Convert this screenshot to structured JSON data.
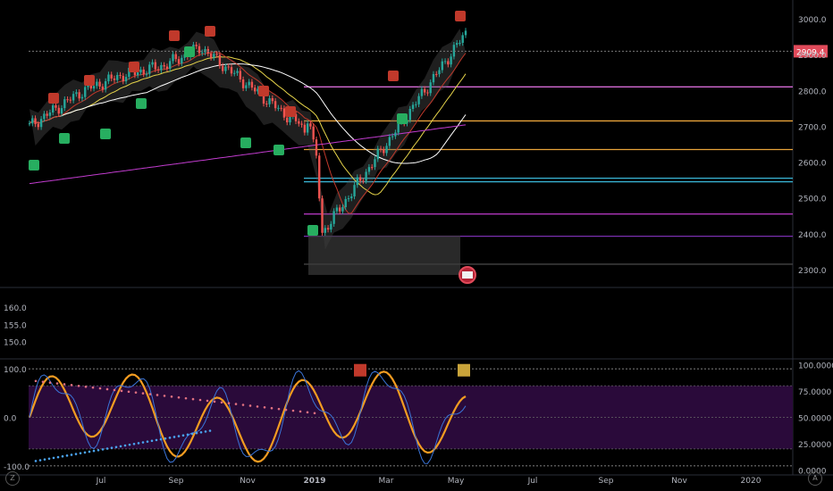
{
  "chart": {
    "type": "candlestick",
    "theme": "dark"
  },
  "price_axis": {
    "ticks": [
      "3000.0",
      "2900.0",
      "2800.0",
      "2700.0",
      "2600.0",
      "2500.0",
      "2400.0",
      "2300.0"
    ],
    "tick_values": [
      3000,
      2900,
      2800,
      2700,
      2600,
      2500,
      2400,
      2300
    ],
    "range": [
      2260,
      3040
    ],
    "last_price_label": "2909.4",
    "last_price": 2909.4,
    "last_price_color": "#e04a5a"
  },
  "indicator_axis_left": {
    "ticks": [
      "160.0",
      "155.0",
      "150.0"
    ],
    "tick_values": [
      160,
      155,
      150
    ],
    "range": [
      146,
      165
    ]
  },
  "oscillator_axis_left": {
    "ticks": [
      "100.0",
      "0.0",
      "-100.0"
    ],
    "tick_values": [
      100,
      0,
      -100
    ],
    "range": [
      -115,
      115
    ]
  },
  "oscillator_axis_right": {
    "ticks": [
      "100.0000",
      "75.0000",
      "50.0000",
      "25.0000",
      "0.0000"
    ],
    "tick_values": [
      100,
      75,
      50,
      25,
      0
    ],
    "range": [
      -3,
      103
    ]
  },
  "time_axis": {
    "labels": [
      "Jul",
      "Sep",
      "Nov",
      "2019",
      "Mar",
      "May",
      "Jul",
      "Sep",
      "Nov",
      "2020"
    ],
    "bold": [
      "2019"
    ]
  },
  "horizontal_levels": [
    {
      "price": 2810,
      "color": "#d66bd6"
    },
    {
      "price": 2715,
      "color": "#e8a33a"
    },
    {
      "price": 2635,
      "color": "#e8a33a"
    },
    {
      "price": 2555,
      "color": "#3ab7d8"
    },
    {
      "price": 2545,
      "color": "#3ab7d8"
    },
    {
      "price": 2455,
      "color": "#c23ccf"
    },
    {
      "price": 2393,
      "color": "#7a2fb0"
    },
    {
      "price": 2315,
      "color": "#444444"
    }
  ],
  "corner_buttons": {
    "left": "Z",
    "right": "A"
  },
  "colors": {
    "bullish": "#26a69a",
    "bearish": "#ef5350",
    "background": "#000000",
    "oscillator_fill": "#2a0a3a",
    "oscillator_main": "#f39c21",
    "cloud": "#5a5a5a"
  },
  "icons": {
    "flag_marker": "us-flag-icon",
    "buy_marker": "green-cup-icon",
    "sell_marker": "red-cup-icon"
  }
}
